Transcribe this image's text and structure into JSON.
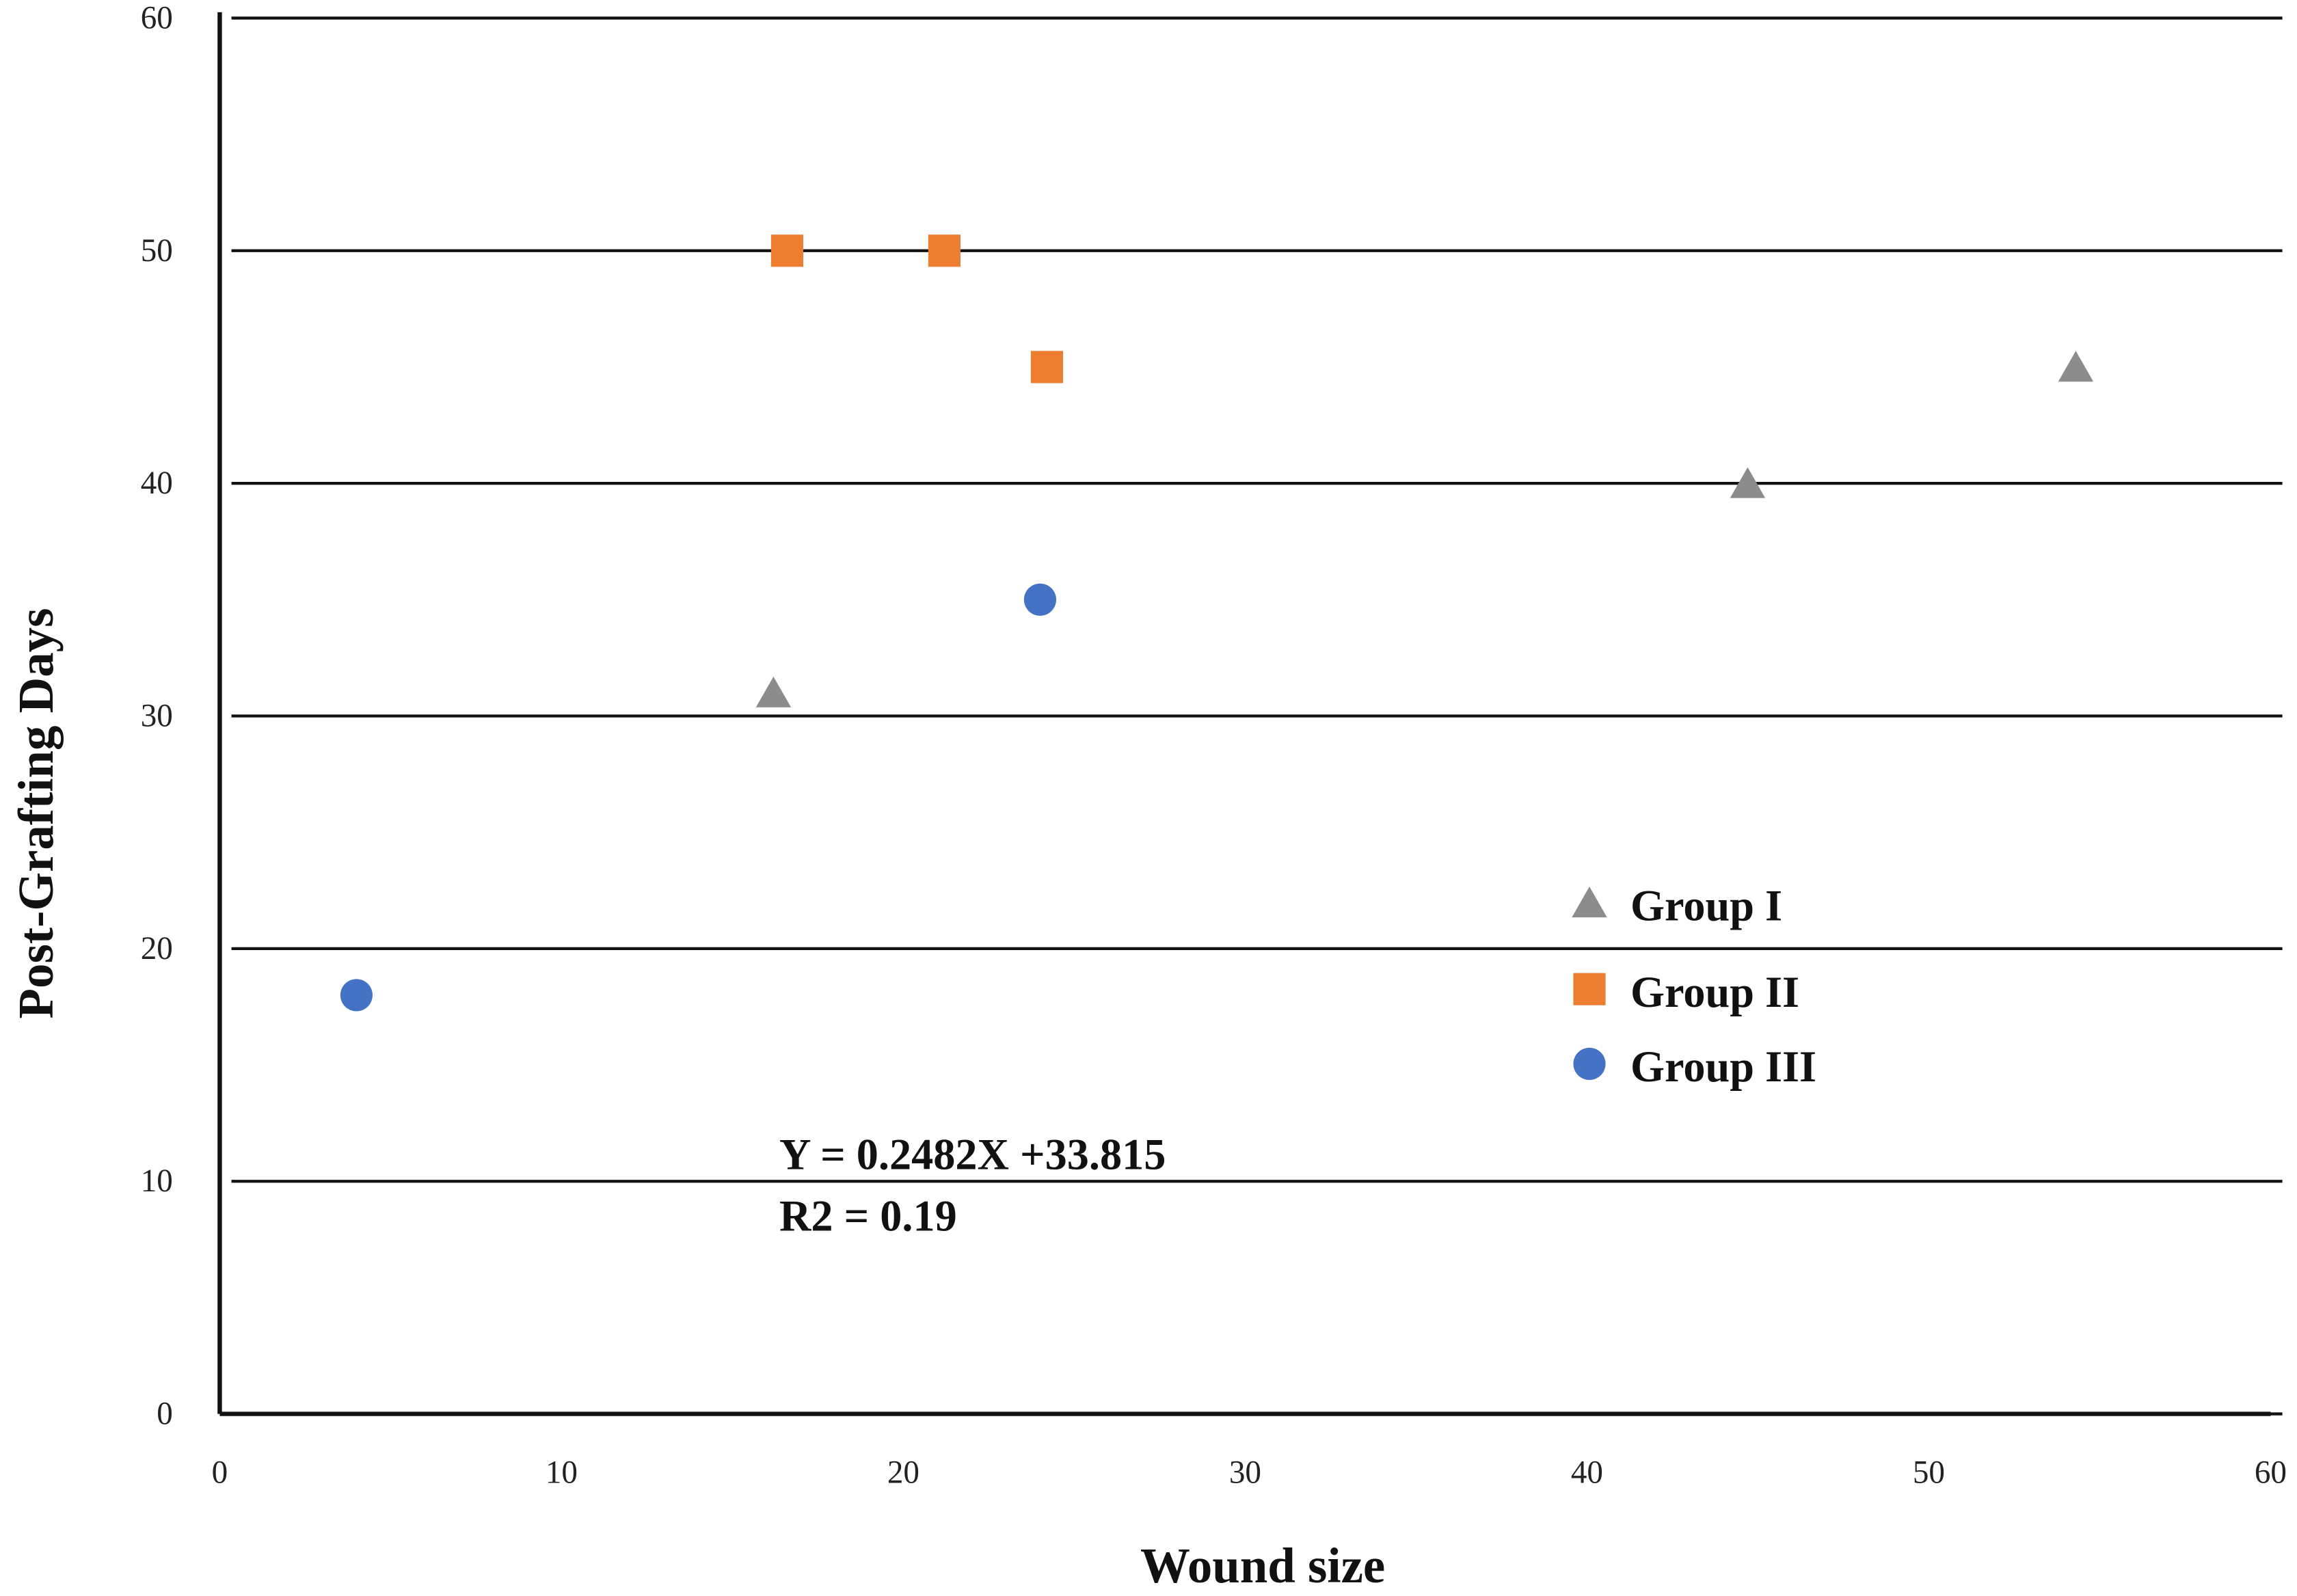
{
  "chart_data": {
    "type": "scatter",
    "x_label": "Wound size",
    "y_label": "Post-Grafting Days",
    "annotations": [
      "Y = 0.2482X +33.815",
      "R2 = 0.19"
    ],
    "series": [
      {
        "name": "Group I",
        "color": "#8c8c8c",
        "marker": "triangle",
        "x": [
          16.2,
          44.7,
          54.3
        ],
        "values": [
          31,
          40,
          45
        ]
      },
      {
        "name": "Group II",
        "color": "#ed7d31",
        "marker": "square",
        "x": [
          16.6,
          21.2,
          24.2
        ],
        "values": [
          50,
          50,
          45
        ]
      },
      {
        "name": "Group III",
        "color": "#4472c4",
        "marker": "circle",
        "x": [
          4.0,
          24.0
        ],
        "values": [
          18,
          35
        ]
      }
    ],
    "xlim": [
      0,
      60
    ],
    "xticks": [
      0,
      10,
      20,
      30,
      40,
      50,
      60
    ],
    "ylim": [
      0,
      60
    ],
    "yticks": [
      0,
      10,
      20,
      30,
      40,
      50,
      60
    ],
    "grid": true,
    "legend": "right"
  }
}
